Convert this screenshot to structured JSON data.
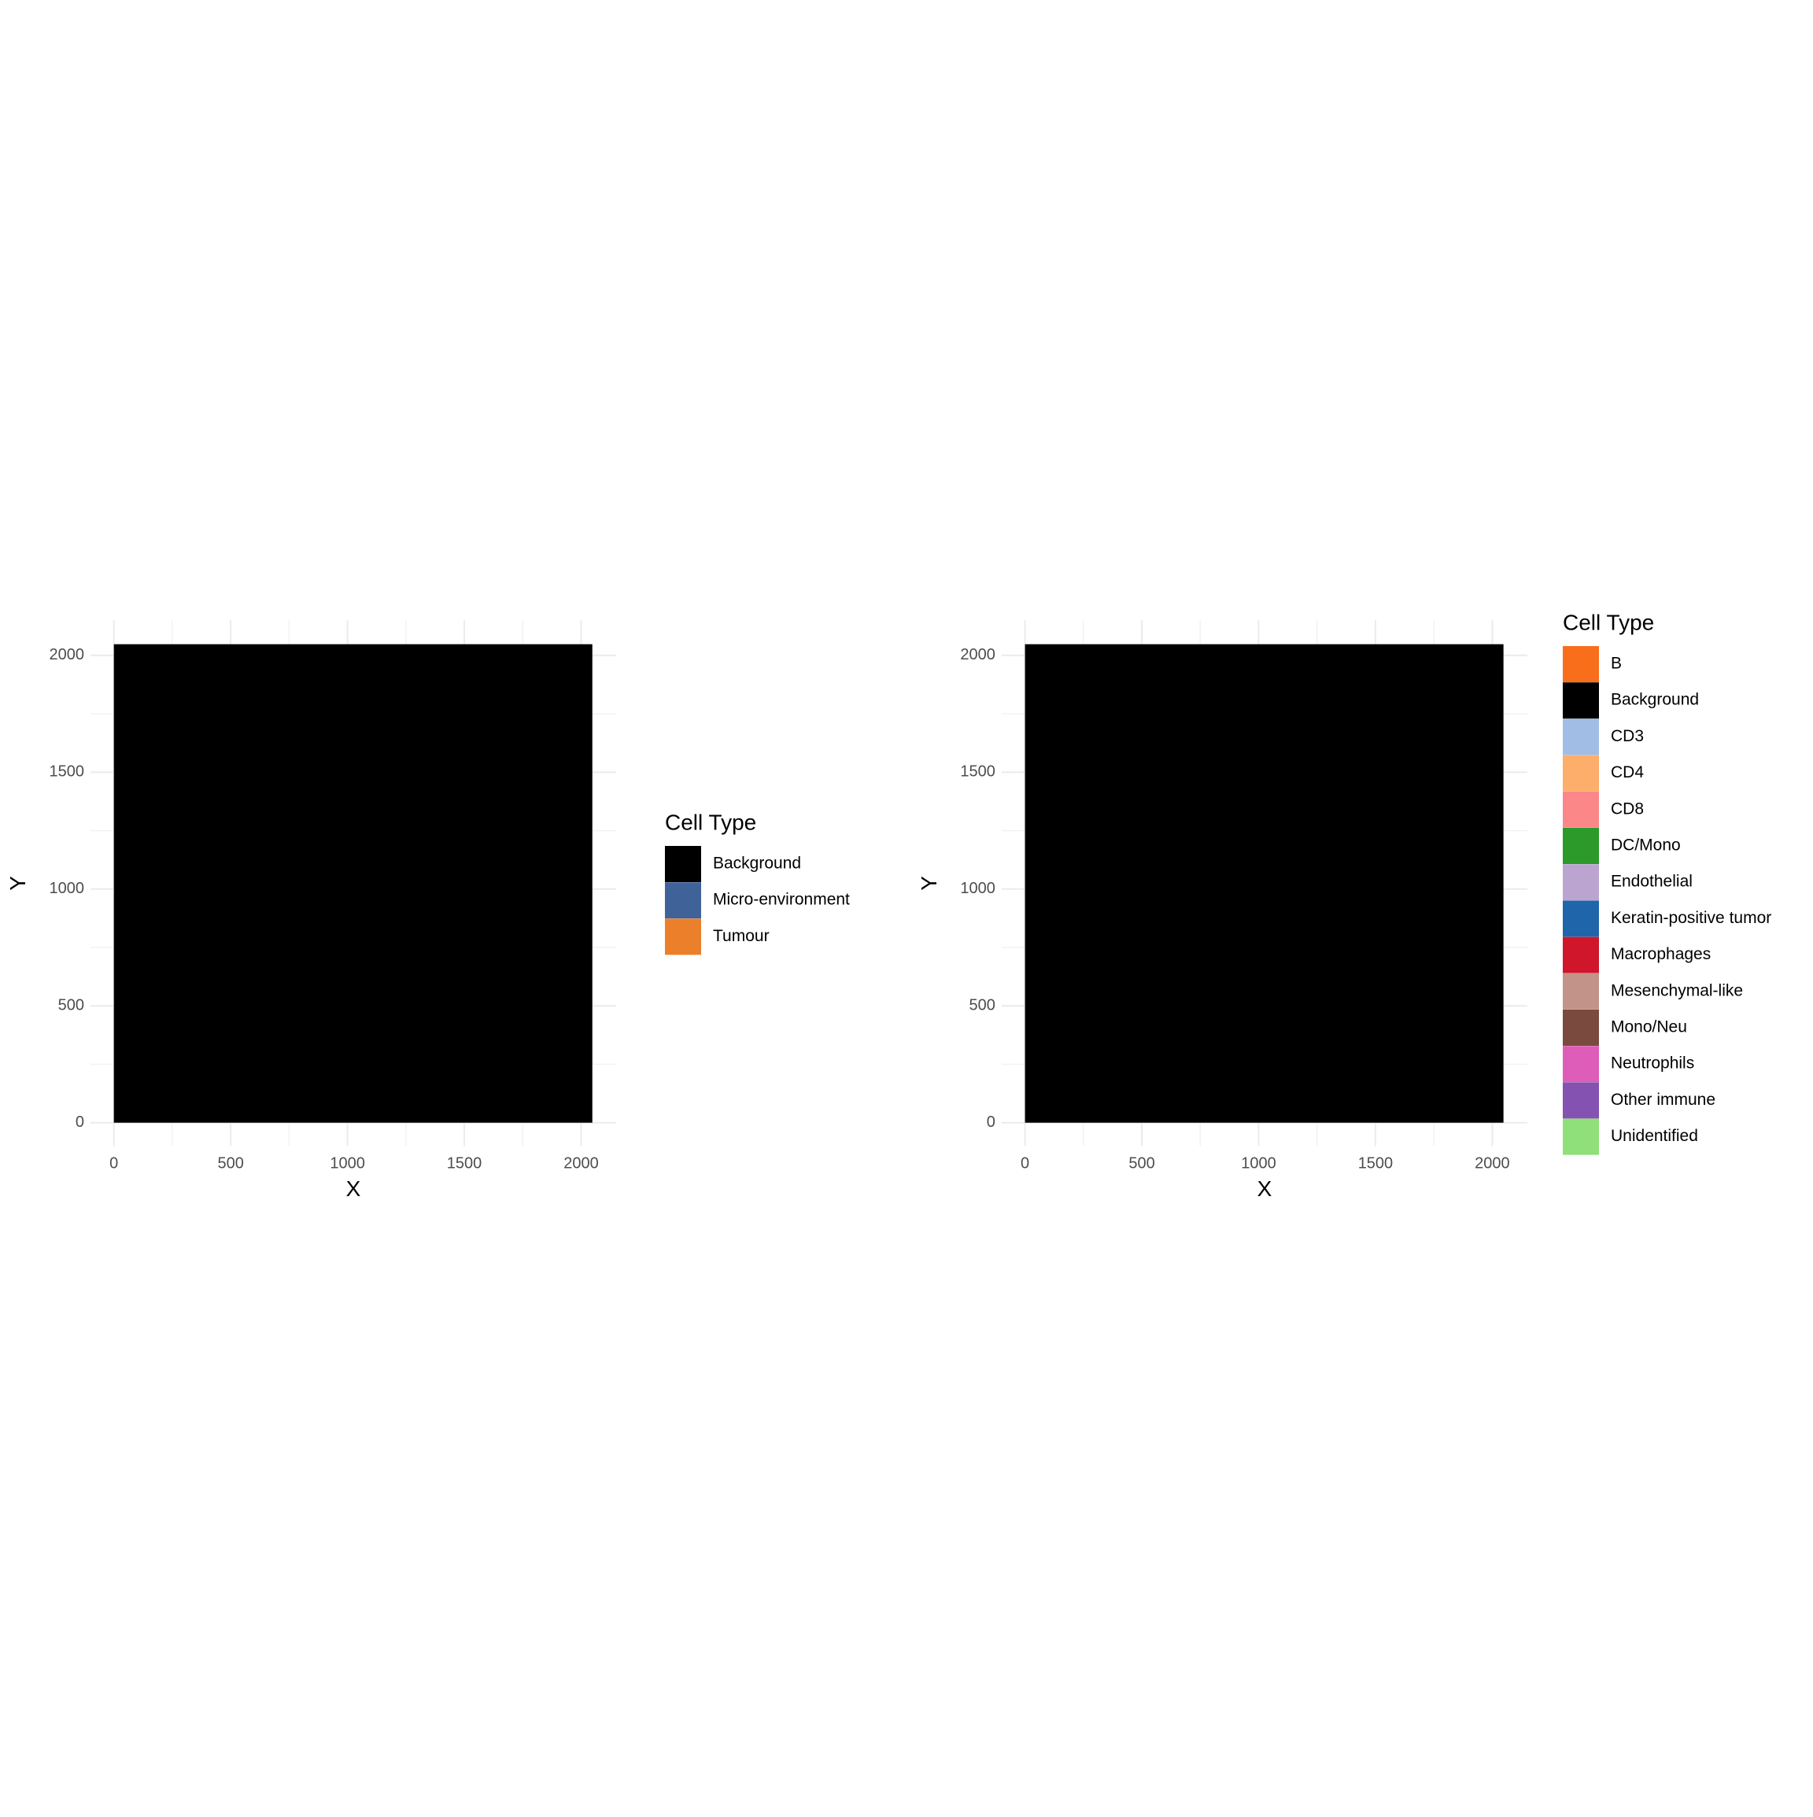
{
  "chart_data": [
    {
      "type": "raster",
      "x_label": "X",
      "y_label": "Y",
      "xlim": [
        -100,
        2150
      ],
      "ylim": [
        -100,
        2150
      ],
      "xticks": [
        0,
        500,
        1000,
        1500,
        2000
      ],
      "yticks": [
        0,
        500,
        1000,
        1500,
        2000
      ],
      "minor_ticks": [
        250,
        750,
        1250,
        1750,
        2250
      ],
      "raster_extent": [
        0,
        2048
      ],
      "grid": true,
      "legend_title": "Cell Type",
      "categories": [
        "Background",
        "Micro-environment",
        "Tumour"
      ],
      "colors": [
        "#000000",
        "#3f6399",
        "#ec7f2a"
      ]
    },
    {
      "type": "raster",
      "x_label": "X",
      "y_label": "Y",
      "xlim": [
        -100,
        2150
      ],
      "ylim": [
        -100,
        2150
      ],
      "xticks": [
        0,
        500,
        1000,
        1500,
        2000
      ],
      "yticks": [
        0,
        500,
        1000,
        1500,
        2000
      ],
      "minor_ticks": [
        250,
        750,
        1250,
        1750,
        2250
      ],
      "raster_extent": [
        0,
        2048
      ],
      "grid": true,
      "legend_title": "Cell Type",
      "categories": [
        "B",
        "Background",
        "CD3",
        "CD4",
        "CD8",
        "DC/Mono",
        "Endothelial",
        "Keratin-positive tumor",
        "Macrophages",
        "Mesenchymal-like",
        "Mono/Neu",
        "Neutrophils",
        "Other immune",
        "Unidentified"
      ],
      "colors": [
        "#f96e1b",
        "#000000",
        "#a2bde5",
        "#fdae6b",
        "#fb8789",
        "#2b9a2b",
        "#bba5d0",
        "#1f65a9",
        "#d0162b",
        "#c19389",
        "#7b4a3f",
        "#de5db8",
        "#8452b1",
        "#8fe07b"
      ]
    }
  ]
}
